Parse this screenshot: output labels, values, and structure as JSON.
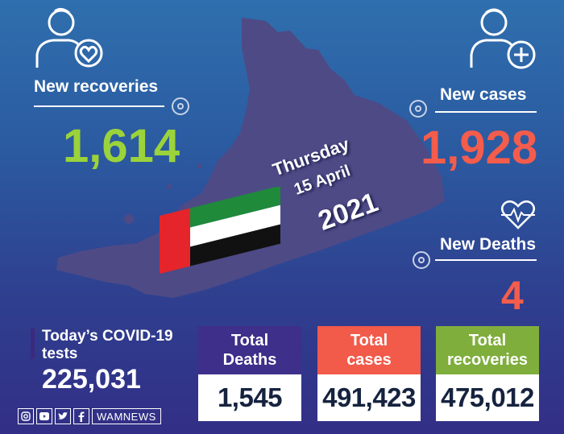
{
  "recoveries": {
    "label": "New recoveries",
    "value": "1,614",
    "color": "#9bd33a"
  },
  "cases": {
    "label": "New cases",
    "value": "1,928",
    "color": "#f45c4c"
  },
  "deaths": {
    "label": "New Deaths",
    "value": "4",
    "color": "#f45c4c"
  },
  "date": {
    "day": "Thursday",
    "date": "15 April",
    "year": "2021"
  },
  "tests": {
    "label_line1": "Today’s COVID-19",
    "label_line2": "tests",
    "value": "225,031"
  },
  "cards": [
    {
      "title_line1": "Total",
      "title_line2": "Deaths",
      "value": "1,545",
      "color": "#3d2f8a"
    },
    {
      "title_line1": "Total",
      "title_line2": "cases",
      "value": "491,423",
      "color": "#f25a4a"
    },
    {
      "title_line1": "Total",
      "title_line2": "recoveries",
      "value": "475,012",
      "color": "#7fae3c"
    }
  ],
  "footer": {
    "brand": "WAMNEWS",
    "icons": [
      "instagram-icon",
      "youtube-icon",
      "twitter-icon",
      "facebook-icon"
    ]
  }
}
